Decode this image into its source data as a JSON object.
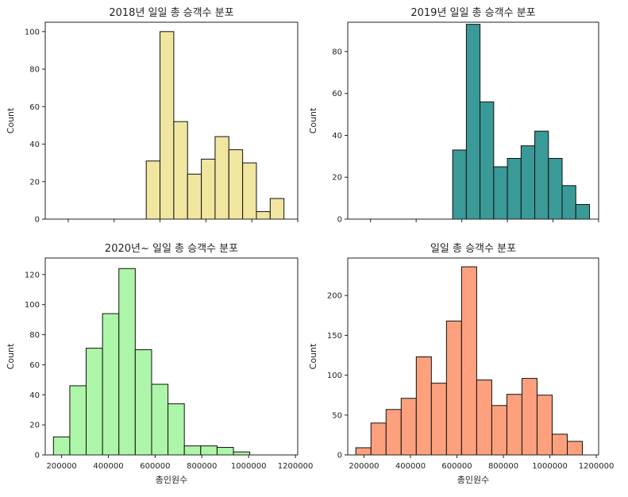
{
  "chart_data": [
    {
      "type": "bar",
      "title": "2018년 일일 총 승객수 분포",
      "xlabel": "",
      "ylabel": "Count",
      "xlim": [
        100000,
        1200000
      ],
      "ylim": [
        0,
        105
      ],
      "xticks": [
        200000,
        400000,
        600000,
        800000,
        1000000,
        1200000
      ],
      "xtick_labels_shown": false,
      "yticks": [
        0,
        20,
        40,
        60,
        80,
        100
      ],
      "bar_color": "#f0e6a0",
      "bins": [
        {
          "x0": 540000,
          "x1": 600000,
          "count": 31
        },
        {
          "x0": 600000,
          "x1": 660000,
          "count": 100
        },
        {
          "x0": 660000,
          "x1": 720000,
          "count": 52
        },
        {
          "x0": 720000,
          "x1": 780000,
          "count": 24
        },
        {
          "x0": 780000,
          "x1": 840000,
          "count": 32
        },
        {
          "x0": 840000,
          "x1": 900000,
          "count": 44
        },
        {
          "x0": 900000,
          "x1": 960000,
          "count": 37
        },
        {
          "x0": 960000,
          "x1": 1020000,
          "count": 30
        },
        {
          "x0": 1020000,
          "x1": 1080000,
          "count": 4
        },
        {
          "x0": 1080000,
          "x1": 1140000,
          "count": 11
        }
      ]
    },
    {
      "type": "bar",
      "title": "2019년 일일 총 승객수 분포",
      "xlabel": "",
      "ylabel": "Count",
      "xlim": [
        100000,
        1200000
      ],
      "ylim": [
        0,
        94
      ],
      "xticks": [
        200000,
        400000,
        600000,
        800000,
        1000000,
        1200000
      ],
      "xtick_labels_shown": false,
      "yticks": [
        0,
        20,
        40,
        60,
        80
      ],
      "bar_color": "#3a9a98",
      "bins": [
        {
          "x0": 560000,
          "x1": 620000,
          "count": 33
        },
        {
          "x0": 620000,
          "x1": 680000,
          "count": 93
        },
        {
          "x0": 680000,
          "x1": 740000,
          "count": 56
        },
        {
          "x0": 740000,
          "x1": 800000,
          "count": 25
        },
        {
          "x0": 800000,
          "x1": 860000,
          "count": 29
        },
        {
          "x0": 860000,
          "x1": 920000,
          "count": 35
        },
        {
          "x0": 920000,
          "x1": 980000,
          "count": 42
        },
        {
          "x0": 980000,
          "x1": 1040000,
          "count": 29
        },
        {
          "x0": 1040000,
          "x1": 1100000,
          "count": 16
        },
        {
          "x0": 1100000,
          "x1": 1160000,
          "count": 7
        }
      ]
    },
    {
      "type": "bar",
      "title": "2020년~ 일일 총 승객수 분포",
      "xlabel": "총인원수",
      "ylabel": "Count",
      "xlim": [
        130000,
        1210000
      ],
      "ylim": [
        0,
        131
      ],
      "xticks": [
        200000,
        400000,
        600000,
        800000,
        1000000,
        1200000
      ],
      "xtick_labels_shown": true,
      "yticks": [
        0,
        20,
        40,
        60,
        80,
        100,
        120
      ],
      "bar_color": "#adf5a8",
      "bins": [
        {
          "x0": 165000,
          "x1": 235000,
          "count": 12
        },
        {
          "x0": 235000,
          "x1": 305000,
          "count": 46
        },
        {
          "x0": 305000,
          "x1": 375000,
          "count": 71
        },
        {
          "x0": 375000,
          "x1": 445000,
          "count": 94
        },
        {
          "x0": 445000,
          "x1": 515000,
          "count": 124
        },
        {
          "x0": 515000,
          "x1": 585000,
          "count": 70
        },
        {
          "x0": 585000,
          "x1": 655000,
          "count": 47
        },
        {
          "x0": 655000,
          "x1": 725000,
          "count": 34
        },
        {
          "x0": 725000,
          "x1": 795000,
          "count": 6
        },
        {
          "x0": 795000,
          "x1": 865000,
          "count": 6
        },
        {
          "x0": 865000,
          "x1": 935000,
          "count": 5
        },
        {
          "x0": 935000,
          "x1": 1005000,
          "count": 2
        }
      ]
    },
    {
      "type": "bar",
      "title": "일일 총 승객수 분포",
      "xlabel": "총인원수",
      "ylabel": "Count",
      "xlim": [
        130000,
        1210000
      ],
      "ylim": [
        0,
        247
      ],
      "xticks": [
        200000,
        400000,
        600000,
        800000,
        1000000,
        1200000
      ],
      "xtick_labels_shown": true,
      "yticks": [
        0,
        50,
        100,
        150,
        200
      ],
      "bar_color": "#fca07e",
      "bins": [
        {
          "x0": 165000,
          "x1": 230000,
          "count": 9
        },
        {
          "x0": 230000,
          "x1": 295000,
          "count": 40
        },
        {
          "x0": 295000,
          "x1": 360000,
          "count": 57
        },
        {
          "x0": 360000,
          "x1": 425000,
          "count": 71
        },
        {
          "x0": 425000,
          "x1": 490000,
          "count": 123
        },
        {
          "x0": 490000,
          "x1": 555000,
          "count": 90
        },
        {
          "x0": 555000,
          "x1": 620000,
          "count": 168
        },
        {
          "x0": 620000,
          "x1": 685000,
          "count": 236
        },
        {
          "x0": 685000,
          "x1": 750000,
          "count": 94
        },
        {
          "x0": 750000,
          "x1": 815000,
          "count": 62
        },
        {
          "x0": 815000,
          "x1": 880000,
          "count": 76
        },
        {
          "x0": 880000,
          "x1": 945000,
          "count": 96
        },
        {
          "x0": 945000,
          "x1": 1010000,
          "count": 75
        },
        {
          "x0": 1010000,
          "x1": 1075000,
          "count": 26
        },
        {
          "x0": 1075000,
          "x1": 1140000,
          "count": 17
        }
      ]
    }
  ]
}
